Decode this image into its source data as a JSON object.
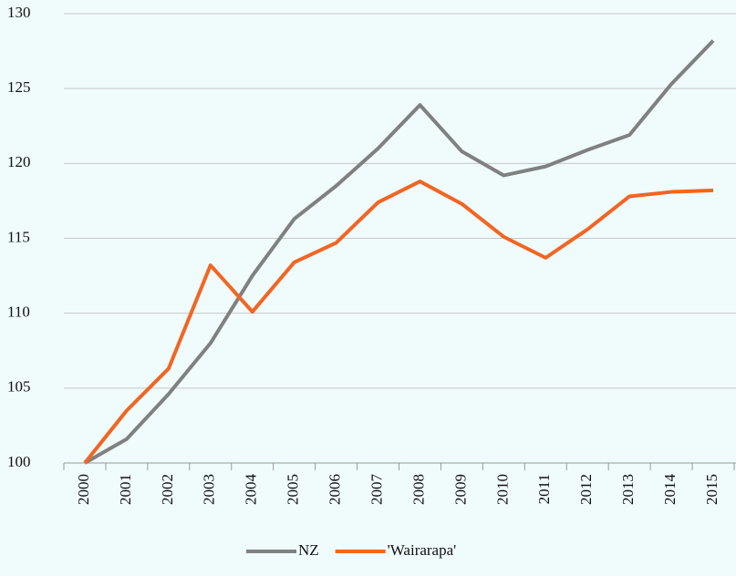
{
  "chart_data": {
    "type": "line",
    "categories": [
      "2000",
      "2001",
      "2002",
      "2003",
      "2004",
      "2005",
      "2006",
      "2007",
      "2008",
      "2009",
      "2010",
      "2011",
      "2012",
      "2013",
      "2014",
      "2015"
    ],
    "series": [
      {
        "name": "NZ",
        "color": "#808080",
        "values": [
          100,
          101.6,
          104.6,
          108,
          112.5,
          116.3,
          118.5,
          121,
          123.9,
          120.8,
          119.2,
          119.8,
          120.9,
          121.9,
          125.3,
          128.2
        ]
      },
      {
        "name": "'Wairarapa'",
        "color": "#f26522",
        "values": [
          100,
          103.5,
          106.3,
          113.2,
          110.1,
          113.4,
          114.7,
          117.4,
          118.8,
          117.3,
          115.1,
          113.7,
          115.6,
          117.8,
          118.1,
          118.2
        ]
      }
    ],
    "ylim": [
      100,
      130
    ],
    "yticks": [
      100,
      105,
      110,
      115,
      120,
      125,
      130
    ],
    "grid": true,
    "legend": "bottom"
  }
}
